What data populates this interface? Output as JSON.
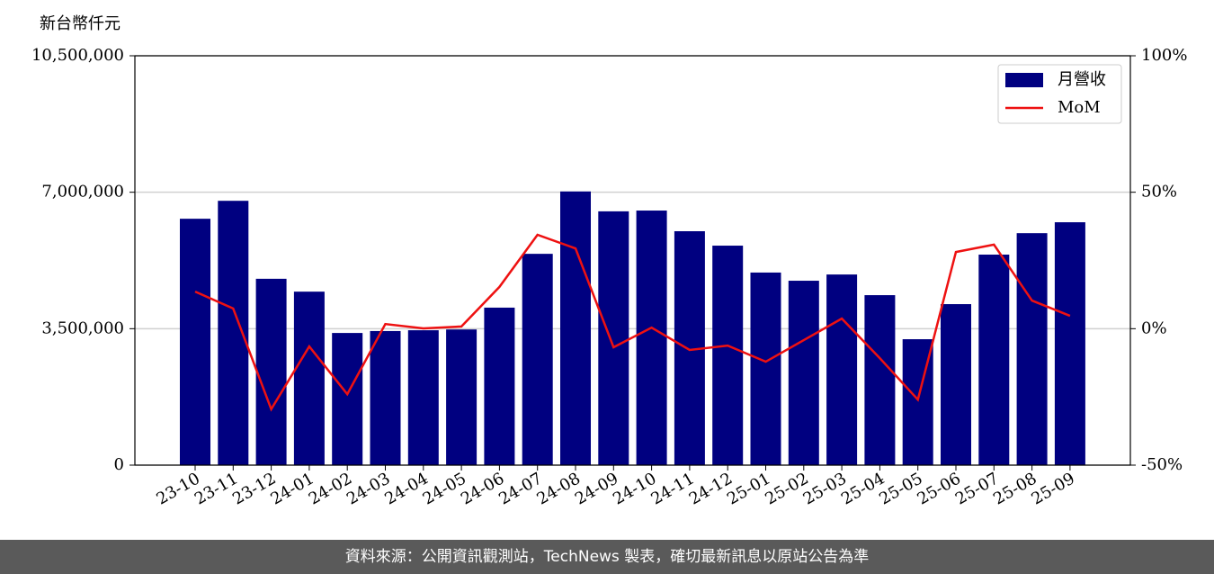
{
  "chart_data": {
    "type": "bar_line",
    "y_axis_label": "新台幣仟元",
    "categories": [
      "23-10",
      "23-11",
      "23-12",
      "24-01",
      "24-02",
      "24-03",
      "24-04",
      "24-05",
      "24-06",
      "24-07",
      "24-08",
      "24-09",
      "24-10",
      "24-11",
      "24-12",
      "25-01",
      "25-02",
      "25-03",
      "25-04",
      "25-05",
      "25-06",
      "25-07",
      "25-08",
      "25-09"
    ],
    "series": [
      {
        "name": "月營收",
        "color": "#000080",
        "type": "bar",
        "values": [
          6320000,
          6780000,
          4780000,
          4450000,
          3390000,
          3440000,
          3460000,
          3480000,
          4040000,
          5420000,
          7020000,
          6510000,
          6530000,
          6000000,
          5630000,
          4940000,
          4730000,
          4890000,
          4360000,
          3230000,
          4130000,
          5400000,
          5950000,
          6230000
        ]
      },
      {
        "name": "MoM",
        "color": "#ee1111",
        "type": "line",
        "axis": "y2",
        "values": [
          13.6,
          7.4,
          -29.5,
          -6.5,
          -24.0,
          1.7,
          0.1,
          0.8,
          15.3,
          34.4,
          29.4,
          -6.8,
          0.4,
          -7.8,
          -6.2,
          -12.1,
          -4.2,
          3.7,
          -10.8,
          -26.0,
          28.1,
          30.8,
          10.3,
          4.7
        ]
      }
    ],
    "ylim": [
      0,
      10500000
    ],
    "yticks": [
      0,
      {
        "value": 3500000,
        "label": "3,500,000"
      },
      {
        "value": 7000000,
        "label": "7,000,000"
      },
      {
        "value": 10500000,
        "label": "10,500,000"
      }
    ],
    "y2lim": [
      -50,
      100
    ],
    "y2ticks": [
      {
        "value": -50,
        "label": "-50%"
      },
      {
        "value": 0,
        "label": "0%"
      },
      {
        "value": 50,
        "label": "50%"
      },
      {
        "value": 100,
        "label": "100%"
      }
    ],
    "grid": true,
    "legend": "upper right"
  },
  "footer": {
    "source": "資料來源：公開資訊觀測站，TechNews 製表，確切最新訊息以原站公告為準"
  }
}
